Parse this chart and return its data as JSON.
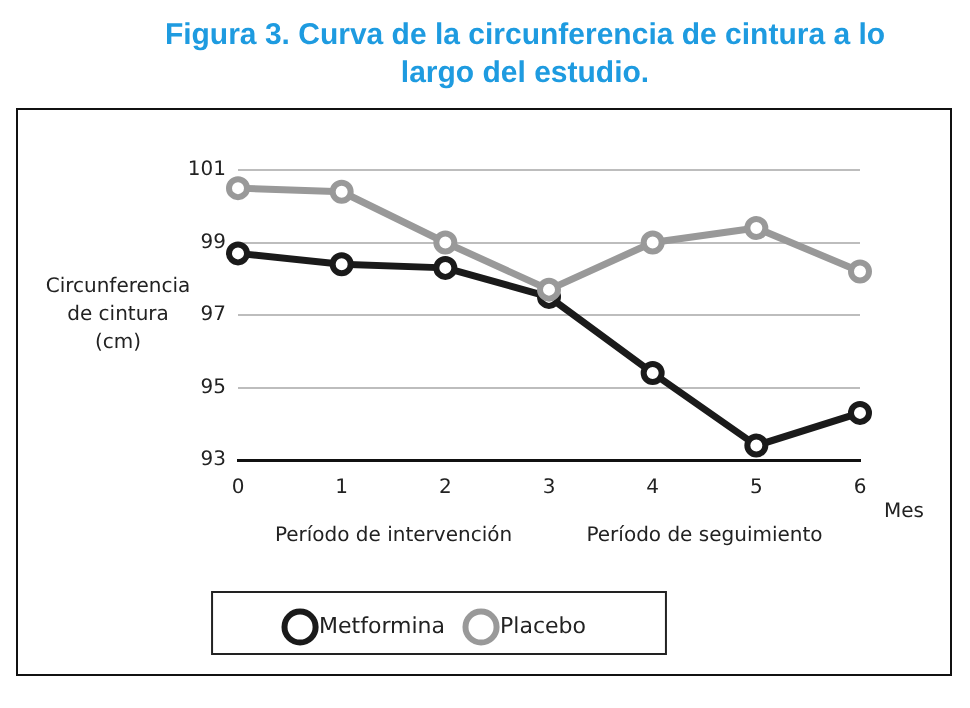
{
  "chart_data": {
    "type": "line",
    "title": "Figura 3. Curva de la circunferencia de cintura a lo largo del estudio.",
    "xlabel": "Mes",
    "ylabel": "Circunferencia de cintura (cm)",
    "x": [
      0,
      1,
      2,
      3,
      4,
      5,
      6
    ],
    "series": [
      {
        "name": "Metformina",
        "color": "#1a1a1a",
        "values": [
          98.7,
          98.4,
          98.3,
          97.5,
          95.4,
          93.4,
          94.3
        ]
      },
      {
        "name": "Placebo",
        "color": "#999999",
        "values": [
          100.5,
          100.4,
          99.0,
          97.7,
          99.0,
          99.4,
          98.2
        ]
      }
    ],
    "xlim": [
      0,
      6
    ],
    "xticks": [
      0,
      1,
      2,
      3,
      4,
      5,
      6
    ],
    "ylim": [
      93,
      101
    ],
    "yticks": [
      93,
      95,
      97,
      99,
      101
    ],
    "annotations": [
      "Período de intervención",
      "Período de seguimiento"
    ],
    "grid": "y",
    "legend": "bottom",
    "marker": "circle",
    "line_style": "solid"
  }
}
